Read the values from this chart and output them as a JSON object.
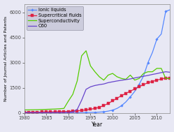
{
  "xlabel": "Year",
  "ylabel": "Number of Journal Articles and Patents",
  "xlim": [
    1980,
    2013
  ],
  "ylim": [
    0,
    6500
  ],
  "yticks": [
    0,
    1500,
    3000,
    4500,
    6000
  ],
  "xticks": [
    1980,
    1985,
    1990,
    1995,
    2000,
    2005,
    2010
  ],
  "bg_color": "#d8d8e8",
  "plot_bg": "#e8e8f4",
  "series": {
    "Ionic liquids": {
      "color": "#5588ff",
      "marker": "D",
      "markersize": 1.8,
      "linewidth": 0.9,
      "markevery": 2,
      "years": [
        1980,
        1981,
        1982,
        1983,
        1984,
        1985,
        1986,
        1987,
        1988,
        1989,
        1990,
        1991,
        1992,
        1993,
        1994,
        1995,
        1996,
        1997,
        1998,
        1999,
        2000,
        2001,
        2002,
        2003,
        2004,
        2005,
        2006,
        2007,
        2008,
        2009,
        2010,
        2011,
        2012,
        2013
      ],
      "values": [
        5,
        5,
        5,
        5,
        5,
        5,
        5,
        5,
        5,
        5,
        8,
        10,
        12,
        15,
        18,
        22,
        30,
        40,
        60,
        100,
        160,
        260,
        420,
        650,
        950,
        1280,
        1700,
        2200,
        3000,
        3600,
        4400,
        4700,
        6050,
        6150
      ]
    },
    "Supercritical fluids": {
      "color": "#dd2244",
      "marker": "s",
      "markersize": 2.2,
      "linewidth": 0.9,
      "markevery": 1,
      "years": [
        1980,
        1981,
        1982,
        1983,
        1984,
        1985,
        1986,
        1987,
        1988,
        1989,
        1990,
        1991,
        1992,
        1993,
        1994,
        1995,
        1996,
        1997,
        1998,
        1999,
        2000,
        2001,
        2002,
        2003,
        2004,
        2005,
        2006,
        2007,
        2008,
        2009,
        2010,
        2011,
        2012,
        2013
      ],
      "values": [
        30,
        33,
        36,
        39,
        43,
        47,
        52,
        58,
        65,
        73,
        82,
        95,
        115,
        140,
        170,
        210,
        260,
        330,
        430,
        560,
        710,
        870,
        1020,
        1160,
        1290,
        1420,
        1560,
        1680,
        1800,
        1870,
        1950,
        2010,
        2080,
        2050
      ]
    },
    "Superconductivity": {
      "color": "#55cc00",
      "marker": null,
      "markersize": 0,
      "linewidth": 0.9,
      "markevery": 1,
      "years": [
        1980,
        1981,
        1982,
        1983,
        1984,
        1985,
        1986,
        1987,
        1988,
        1989,
        1990,
        1991,
        1992,
        1993,
        1994,
        1995,
        1996,
        1997,
        1998,
        1999,
        2000,
        2001,
        2002,
        2003,
        2004,
        2005,
        2006,
        2007,
        2008,
        2009,
        2010,
        2011,
        2012,
        2013
      ],
      "values": [
        170,
        175,
        180,
        185,
        195,
        205,
        215,
        225,
        240,
        260,
        700,
        1100,
        1900,
        3400,
        3700,
        2800,
        2450,
        2150,
        1950,
        2250,
        2350,
        2150,
        2050,
        2000,
        2250,
        1950,
        2050,
        2350,
        2450,
        2450,
        2650,
        2650,
        2050,
        2050
      ]
    },
    "C60": {
      "color": "#6644cc",
      "marker": null,
      "markersize": 0,
      "linewidth": 0.9,
      "markevery": 1,
      "years": [
        1980,
        1981,
        1982,
        1983,
        1984,
        1985,
        1986,
        1987,
        1988,
        1989,
        1990,
        1991,
        1992,
        1993,
        1994,
        1995,
        1996,
        1997,
        1998,
        1999,
        2000,
        2001,
        2002,
        2003,
        2004,
        2005,
        2006,
        2007,
        2008,
        2009,
        2010,
        2011,
        2012,
        2013
      ],
      "values": [
        10,
        10,
        10,
        10,
        10,
        10,
        10,
        10,
        10,
        10,
        20,
        55,
        200,
        750,
        1400,
        1550,
        1630,
        1680,
        1720,
        1800,
        1850,
        1900,
        1940,
        1980,
        2020,
        2080,
        2130,
        2180,
        2230,
        2290,
        2340,
        2400,
        2450,
        2420
      ]
    }
  },
  "legend_loc": "upper left",
  "legend_fontsize": 4.8,
  "legend_marker_scale": 1.0
}
